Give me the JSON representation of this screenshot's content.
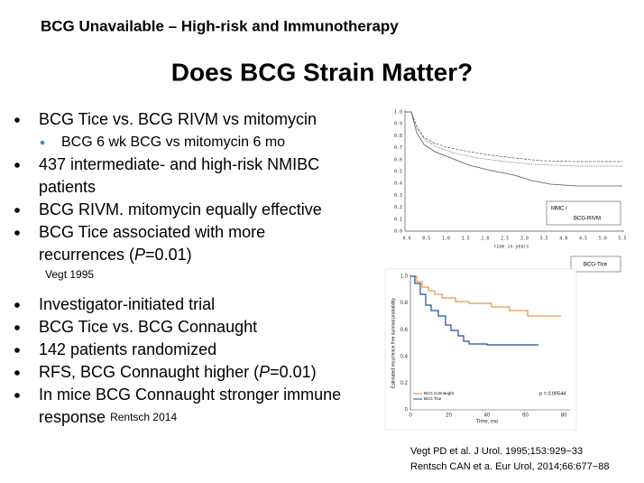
{
  "header": {
    "title": "BCG Unavailable – High-risk and Immunotherapy"
  },
  "slide": {
    "title": "Does BCG Strain Matter?"
  },
  "groups": [
    {
      "bullets": [
        {
          "level": 1,
          "lines": [
            [
              {
                "text": "BCG Tice vs. BCG RIVM vs mitomycin"
              }
            ]
          ]
        },
        {
          "level": 2,
          "lines": [
            [
              {
                "text": "BCG 6 wk BCG vs mitomycin 6 mo"
              }
            ]
          ]
        },
        {
          "level": 1,
          "lines": [
            [
              {
                "text": "437 intermediate- and high-risk NMIBC"
              }
            ],
            [
              {
                "text": "patients"
              }
            ]
          ]
        },
        {
          "level": 1,
          "lines": [
            [
              {
                "text": "BCG RIVM. mitomycin equally effective"
              }
            ]
          ]
        },
        {
          "level": 1,
          "lines": [
            [
              {
                "text": "BCG Tice associated with more"
              }
            ],
            [
              {
                "text": "recurrences ("
              },
              {
                "text": "P",
                "style": "italic"
              },
              {
                "text": "=0.01)"
              }
            ]
          ]
        }
      ],
      "note": "Vegt 1995"
    },
    {
      "bullets": [
        {
          "level": 1,
          "lines": [
            [
              {
                "text": "Investigator-initiated trial"
              }
            ]
          ]
        },
        {
          "level": 1,
          "lines": [
            [
              {
                "text": "BCG Tice vs. BCG Connaught"
              }
            ]
          ]
        },
        {
          "level": 1,
          "lines": [
            [
              {
                "text": "142 patients randomized"
              }
            ]
          ]
        },
        {
          "level": 1,
          "lines": [
            [
              {
                "text": "RFS, BCG Connaught higher ("
              },
              {
                "text": "P",
                "style": "italic"
              },
              {
                "text": "=0.01)"
              }
            ]
          ]
        },
        {
          "level": 1,
          "lines": [
            [
              {
                "text": "In mice BCG Connaught stronger immune"
              }
            ],
            [
              {
                "text": "response "
              },
              {
                "text": "Rentsch 2014",
                "style": "small"
              }
            ]
          ]
        }
      ]
    }
  ],
  "figure1": {
    "y_tick_labels": [
      "1.0",
      "0.9",
      "0.8",
      "0.7",
      "0.6",
      "0.5",
      "0.4",
      "0.3",
      "0.2",
      "0.1",
      "0.0"
    ],
    "x_tick_labels": [
      "0.0",
      "0.5",
      "1.0",
      "1.5",
      "2.0",
      "2.5",
      "3.0",
      "3.5",
      "4.0",
      "4.5",
      "5.0",
      "5.5"
    ],
    "x_label": "time in years",
    "legend_1": "MMC  /",
    "legend_2": "BCG-RIVM",
    "legend_3": "BCG-Tice"
  },
  "figure2": {
    "y_tick_labels": [
      "0",
      "0.2",
      "0.4",
      "0.6",
      "0.8",
      "1.0"
    ],
    "x_tick_labels": [
      "0",
      "20",
      "40",
      "60",
      "80"
    ],
    "x_label": "Time, mo",
    "y_label": "Estimated recurrence free survival probability",
    "legend_1": "BCG Connaught",
    "legend_2": "BCG Tice",
    "p_value": "p = 0.00544"
  },
  "references": [
    "Vegt PD et al. J Urol. 1995;153:929−33",
    "Rentsch CAN et a. Eur Urol, 2014;66:677−88"
  ]
}
